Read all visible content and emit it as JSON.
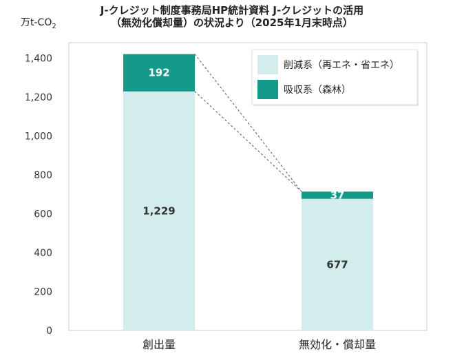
{
  "chart_data": {
    "type": "bar",
    "stacked": true,
    "title_line1": "J-クレジット制度事務局HP統計資料 J-クレジットの活用",
    "title_line2": "（無効化償却量）の状況より（2025年1月末時点）",
    "unit": {
      "base": "万t-CO",
      "sub": "2"
    },
    "categories": [
      "創出量",
      "無効化・償却量"
    ],
    "series": [
      {
        "name": "削減系（再エネ・省エネ）",
        "values": [
          1229,
          677
        ],
        "labels": [
          "1,229",
          "677"
        ],
        "color": "#d3ecec",
        "label_color": "#333333"
      },
      {
        "name": "吸収系（森林）",
        "values": [
          192,
          37
        ],
        "labels": [
          "192",
          "37"
        ],
        "color": "#15998b",
        "label_color": "#ffffff"
      }
    ],
    "ylim": [
      0,
      1500
    ],
    "yticks": [
      0,
      200,
      400,
      600,
      800,
      1000,
      1200,
      1400
    ],
    "ytick_labels": [
      "0",
      "200",
      "400",
      "600",
      "800",
      "1,000",
      "1,200",
      "1,400"
    ],
    "grid": false,
    "legend_position": "top-right"
  }
}
